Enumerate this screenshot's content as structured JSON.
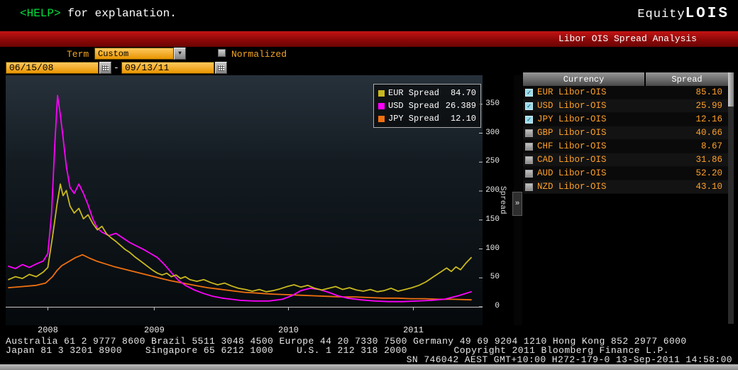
{
  "terminal": {
    "help_prompt": "<HELP>",
    "help_suffix": " for explanation.",
    "app_left": "Equity",
    "app_right": "LOIS"
  },
  "title_bar": {
    "title": "Libor OIS Spread Analysis"
  },
  "controls": {
    "term_label": "Term",
    "term_value": "Custom",
    "dropdown_arrow": "▼",
    "normalized_label": "Normalized",
    "normalized_checked": false,
    "date_from": "06/15/08",
    "date_separator": "-",
    "date_to": "09/13/11"
  },
  "legend": {
    "items": [
      {
        "label": "EUR Spread",
        "value": "84.70",
        "color": "#c8b81e"
      },
      {
        "label": "USD Spread",
        "value": "26.389",
        "color": "#ff00ff"
      },
      {
        "label": "JPY Spread",
        "value": "12.10",
        "color": "#f07010"
      }
    ]
  },
  "right_panel": {
    "headers": [
      "Currency",
      "Spread"
    ],
    "check_glyph": "✓",
    "expander": "»",
    "rows": [
      {
        "currency": "EUR Libor-OIS",
        "spread": "85.10",
        "checked": true
      },
      {
        "currency": "USD Libor-OIS",
        "spread": "25.99",
        "checked": true
      },
      {
        "currency": "JPY Libor-OIS",
        "spread": "12.16",
        "checked": true
      },
      {
        "currency": "GBP Libor-OIS",
        "spread": "40.66",
        "checked": false
      },
      {
        "currency": "CHF Libor-OIS",
        "spread": "8.67",
        "checked": false
      },
      {
        "currency": "CAD Libor-OIS",
        "spread": "31.86",
        "checked": false
      },
      {
        "currency": "AUD Libor-OIS",
        "spread": "52.20",
        "checked": false
      },
      {
        "currency": "NZD Libor-OIS",
        "spread": "43.10",
        "checked": false
      }
    ]
  },
  "footer": {
    "line1": "Australia 61 2 9777 8600 Brazil 5511 3048 4500 Europe 44 20 7330 7500 Germany 49 69 9204 1210 Hong Kong 852 2977 6000",
    "line2": "Japan 81 3 3201 8900    Singapore 65 6212 1000    U.S. 1 212 318 2000        Copyright 2011 Bloomberg Finance L.P.",
    "line3": "SN 746042 AEST GMT+10:00 H272-179-0 13-Sep-2011 14:58:00"
  },
  "chart_data": {
    "type": "line",
    "title": "Libor OIS Spread Analysis",
    "xlabel": "",
    "ylabel": "Spread",
    "x_range": [
      "06/15/08",
      "09/13/11"
    ],
    "x_unit": "fraction_of_date_range",
    "ylim": [
      0,
      400
    ],
    "yticks": [
      0,
      50,
      100,
      150,
      200,
      250,
      300,
      350
    ],
    "xticks": [
      {
        "label": "2008",
        "pos": 0.085
      },
      {
        "label": "2009",
        "pos": 0.315
      },
      {
        "label": "2010",
        "pos": 0.605
      },
      {
        "label": "2011",
        "pos": 0.875
      }
    ],
    "grid": false,
    "legend_position": "top-right",
    "series": [
      {
        "name": "EUR Spread",
        "color": "#c8b81e",
        "points": [
          [
            0,
            47
          ],
          [
            0.015,
            52
          ],
          [
            0.03,
            49
          ],
          [
            0.045,
            56
          ],
          [
            0.06,
            52
          ],
          [
            0.075,
            60
          ],
          [
            0.085,
            68
          ],
          [
            0.095,
            120
          ],
          [
            0.105,
            178
          ],
          [
            0.112,
            212
          ],
          [
            0.118,
            192
          ],
          [
            0.125,
            201
          ],
          [
            0.133,
            174
          ],
          [
            0.142,
            162
          ],
          [
            0.152,
            170
          ],
          [
            0.162,
            152
          ],
          [
            0.172,
            159
          ],
          [
            0.182,
            144
          ],
          [
            0.192,
            133
          ],
          [
            0.202,
            139
          ],
          [
            0.212,
            126
          ],
          [
            0.222,
            119
          ],
          [
            0.232,
            113
          ],
          [
            0.242,
            106
          ],
          [
            0.252,
            99
          ],
          [
            0.262,
            94
          ],
          [
            0.272,
            87
          ],
          [
            0.282,
            81
          ],
          [
            0.292,
            75
          ],
          [
            0.302,
            69
          ],
          [
            0.312,
            63
          ],
          [
            0.322,
            58
          ],
          [
            0.332,
            55
          ],
          [
            0.342,
            58
          ],
          [
            0.352,
            52
          ],
          [
            0.362,
            55
          ],
          [
            0.372,
            49
          ],
          [
            0.382,
            52
          ],
          [
            0.392,
            47
          ],
          [
            0.407,
            44
          ],
          [
            0.422,
            47
          ],
          [
            0.437,
            42
          ],
          [
            0.452,
            38
          ],
          [
            0.467,
            41
          ],
          [
            0.482,
            36
          ],
          [
            0.497,
            32
          ],
          [
            0.512,
            30
          ],
          [
            0.527,
            27
          ],
          [
            0.542,
            30
          ],
          [
            0.557,
            26
          ],
          [
            0.572,
            28
          ],
          [
            0.587,
            31
          ],
          [
            0.602,
            35
          ],
          [
            0.617,
            38
          ],
          [
            0.632,
            34
          ],
          [
            0.647,
            37
          ],
          [
            0.662,
            32
          ],
          [
            0.677,
            29
          ],
          [
            0.692,
            32
          ],
          [
            0.707,
            35
          ],
          [
            0.722,
            30
          ],
          [
            0.737,
            33
          ],
          [
            0.752,
            29
          ],
          [
            0.767,
            27
          ],
          [
            0.782,
            30
          ],
          [
            0.797,
            26
          ],
          [
            0.812,
            28
          ],
          [
            0.827,
            32
          ],
          [
            0.842,
            27
          ],
          [
            0.857,
            30
          ],
          [
            0.872,
            33
          ],
          [
            0.887,
            37
          ],
          [
            0.902,
            43
          ],
          [
            0.917,
            51
          ],
          [
            0.932,
            59
          ],
          [
            0.947,
            67
          ],
          [
            0.957,
            61
          ],
          [
            0.967,
            69
          ],
          [
            0.977,
            64
          ],
          [
            0.988,
            75
          ],
          [
            1,
            85
          ]
        ]
      },
      {
        "name": "USD Spread",
        "color": "#ff00ff",
        "points": [
          [
            0,
            70
          ],
          [
            0.015,
            66
          ],
          [
            0.03,
            73
          ],
          [
            0.045,
            68
          ],
          [
            0.06,
            74
          ],
          [
            0.075,
            79
          ],
          [
            0.085,
            92
          ],
          [
            0.093,
            160
          ],
          [
            0.1,
            280
          ],
          [
            0.106,
            365
          ],
          [
            0.112,
            332
          ],
          [
            0.118,
            292
          ],
          [
            0.125,
            242
          ],
          [
            0.133,
            206
          ],
          [
            0.142,
            196
          ],
          [
            0.152,
            212
          ],
          [
            0.162,
            196
          ],
          [
            0.172,
            176
          ],
          [
            0.182,
            152
          ],
          [
            0.192,
            136
          ],
          [
            0.202,
            129
          ],
          [
            0.217,
            123
          ],
          [
            0.232,
            127
          ],
          [
            0.247,
            119
          ],
          [
            0.262,
            111
          ],
          [
            0.277,
            105
          ],
          [
            0.292,
            99
          ],
          [
            0.307,
            92
          ],
          [
            0.322,
            85
          ],
          [
            0.337,
            73
          ],
          [
            0.352,
            59
          ],
          [
            0.367,
            46
          ],
          [
            0.382,
            37
          ],
          [
            0.402,
            29
          ],
          [
            0.422,
            23
          ],
          [
            0.442,
            18
          ],
          [
            0.462,
            15
          ],
          [
            0.482,
            13
          ],
          [
            0.502,
            11
          ],
          [
            0.532,
            10
          ],
          [
            0.562,
            10
          ],
          [
            0.592,
            13
          ],
          [
            0.612,
            19
          ],
          [
            0.632,
            28
          ],
          [
            0.652,
            32
          ],
          [
            0.672,
            30
          ],
          [
            0.692,
            25
          ],
          [
            0.712,
            19
          ],
          [
            0.732,
            15
          ],
          [
            0.762,
            12
          ],
          [
            0.792,
            10
          ],
          [
            0.822,
            9
          ],
          [
            0.852,
            9
          ],
          [
            0.882,
            10
          ],
          [
            0.912,
            11
          ],
          [
            0.942,
            13
          ],
          [
            0.972,
            19
          ],
          [
            1,
            26
          ]
        ]
      },
      {
        "name": "JPY Spread",
        "color": "#f07010",
        "points": [
          [
            0,
            33
          ],
          [
            0.03,
            35
          ],
          [
            0.06,
            37
          ],
          [
            0.08,
            41
          ],
          [
            0.095,
            52
          ],
          [
            0.105,
            63
          ],
          [
            0.115,
            71
          ],
          [
            0.13,
            78
          ],
          [
            0.145,
            85
          ],
          [
            0.16,
            90
          ],
          [
            0.175,
            84
          ],
          [
            0.19,
            79
          ],
          [
            0.21,
            74
          ],
          [
            0.23,
            69
          ],
          [
            0.25,
            65
          ],
          [
            0.27,
            61
          ],
          [
            0.29,
            57
          ],
          [
            0.31,
            53
          ],
          [
            0.33,
            49
          ],
          [
            0.35,
            45
          ],
          [
            0.37,
            42
          ],
          [
            0.39,
            39
          ],
          [
            0.41,
            36
          ],
          [
            0.43,
            33
          ],
          [
            0.45,
            31
          ],
          [
            0.47,
            29
          ],
          [
            0.49,
            27
          ],
          [
            0.51,
            25
          ],
          [
            0.53,
            24
          ],
          [
            0.55,
            23
          ],
          [
            0.57,
            22
          ],
          [
            0.6,
            21
          ],
          [
            0.63,
            20
          ],
          [
            0.66,
            19
          ],
          [
            0.69,
            18
          ],
          [
            0.72,
            17
          ],
          [
            0.75,
            17
          ],
          [
            0.78,
            16
          ],
          [
            0.81,
            15
          ],
          [
            0.84,
            15
          ],
          [
            0.87,
            14
          ],
          [
            0.9,
            14
          ],
          [
            0.93,
            13
          ],
          [
            0.96,
            13
          ],
          [
            1,
            12
          ]
        ]
      }
    ]
  }
}
